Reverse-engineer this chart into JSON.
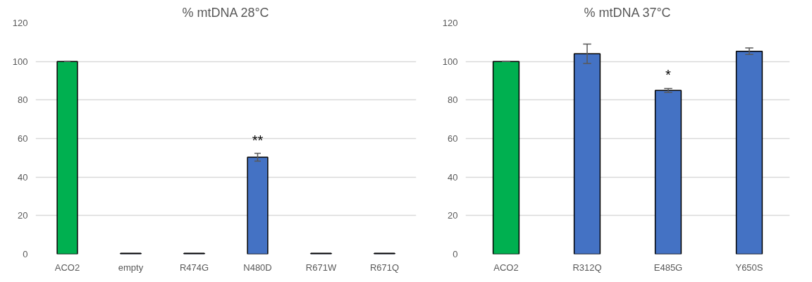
{
  "chart_data": [
    {
      "type": "bar",
      "title": "% mtDNA 28°C",
      "categories": [
        "ACO2",
        "empty",
        "R474G",
        "N480D",
        "R671W",
        "R671Q"
      ],
      "values": [
        100,
        0.5,
        0.5,
        50.3,
        0.5,
        0.5
      ],
      "colors": [
        "#00b050",
        "#4472c4",
        "#4472c4",
        "#4472c4",
        "#4472c4",
        "#4472c4"
      ],
      "errors": [
        0,
        null,
        null,
        2,
        null,
        null
      ],
      "ylim": [
        0,
        120
      ],
      "yticks": [
        0,
        20,
        40,
        60,
        80,
        100,
        120
      ],
      "grid": "y",
      "annotations": [
        {
          "text": "**",
          "x": "N480D",
          "y": 52.3
        }
      ]
    },
    {
      "type": "bar",
      "title": "% mtDNA 37°C",
      "categories": [
        "ACO2",
        "R312Q",
        "E485G",
        "Y650S"
      ],
      "values": [
        100,
        104,
        85,
        105.3
      ],
      "colors": [
        "#00b050",
        "#4472c4",
        "#4472c4",
        "#4472c4"
      ],
      "errors": [
        0,
        5,
        1,
        1.7
      ],
      "ylim": [
        0,
        120
      ],
      "yticks": [
        0,
        20,
        40,
        60,
        80,
        100,
        120
      ],
      "grid": "y",
      "annotations": [
        {
          "text": "*",
          "x": "E485G",
          "y": 86
        }
      ]
    }
  ]
}
